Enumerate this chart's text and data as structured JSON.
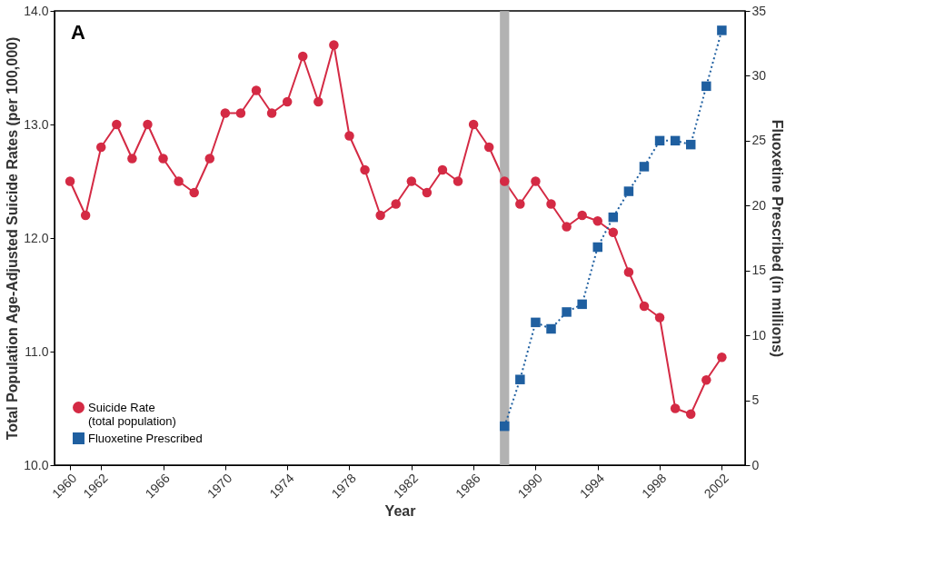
{
  "chart_data": {
    "type": "line",
    "xlabel": "Year",
    "ylabel": "Total Population Age-Adjusted Suicide Rates (per 100,000)",
    "y2label": "Fluoxetine Prescribed (in millions)",
    "annotations": [
      "A"
    ],
    "series": [
      {
        "name": "Suicide Rate\n(total population)",
        "color": "#d42a44",
        "marker": "circle",
        "line_style": "solid",
        "x": [
          1960,
          1961,
          1962,
          1963,
          1964,
          1965,
          1966,
          1967,
          1968,
          1969,
          1970,
          1971,
          1972,
          1973,
          1974,
          1975,
          1976,
          1977,
          1978,
          1979,
          1980,
          1981,
          1982,
          1983,
          1984,
          1985,
          1986,
          1987,
          1988,
          1989,
          1990,
          1991,
          1992,
          1993,
          1994,
          1995,
          1996,
          1997,
          1998,
          1999,
          2000,
          2001,
          2002
        ],
        "values": [
          12.5,
          12.2,
          12.8,
          13.0,
          12.7,
          13.0,
          12.7,
          12.5,
          12.4,
          12.7,
          13.1,
          13.1,
          13.3,
          13.1,
          13.2,
          13.6,
          13.2,
          13.7,
          12.9,
          12.6,
          12.2,
          12.3,
          12.5,
          12.4,
          12.6,
          12.5,
          13.0,
          12.8,
          12.5,
          12.3,
          12.5,
          12.3,
          12.1,
          12.2,
          12.15,
          12.05,
          11.7,
          11.4,
          11.3,
          10.5,
          10.45,
          10.75,
          10.95
        ]
      },
      {
        "name": "Fluoxetine Prescribed",
        "color": "#1f5fa0",
        "marker": "square",
        "line_style": "dotted",
        "axis": "y2",
        "x": [
          1988,
          1989,
          1990,
          1991,
          1992,
          1993,
          1994,
          1995,
          1996,
          1997,
          1998,
          1999,
          2000,
          2001,
          2002
        ],
        "values": [
          3.0,
          6.6,
          11.0,
          10.5,
          11.8,
          12.4,
          16.8,
          19.1,
          21.1,
          23.0,
          25.0,
          25.0,
          24.7,
          29.2,
          33.5
        ]
      }
    ],
    "bands": [
      {
        "axis": "x",
        "from": 1987.7,
        "to": 1988.3,
        "color": "#aaaaaa"
      }
    ],
    "xlim": [
      1959,
      2003.5
    ],
    "xticks": [
      1960,
      1962,
      1966,
      1970,
      1974,
      1978,
      1982,
      1986,
      1990,
      1994,
      1998,
      2002
    ],
    "ylim": [
      10,
      14
    ],
    "yticks": [
      {
        "value": 10,
        "label": "10.0"
      },
      {
        "value": 11,
        "label": "11.0"
      },
      {
        "value": 12,
        "label": "12.0"
      },
      {
        "value": 13,
        "label": "13.0"
      },
      {
        "value": 14,
        "label": "14.0"
      }
    ],
    "y2lim": [
      0,
      35
    ],
    "y2ticks": [
      0,
      5,
      10,
      15,
      20,
      25,
      30,
      35
    ],
    "grid": false,
    "legend": "bottom left"
  }
}
